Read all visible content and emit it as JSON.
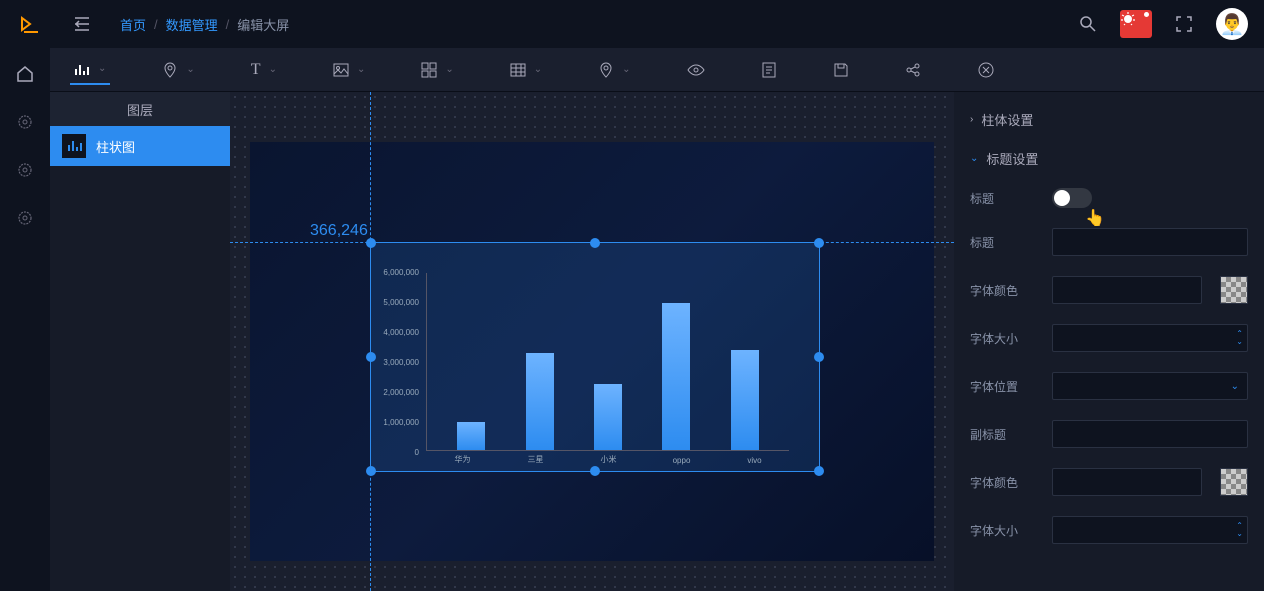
{
  "breadcrumb": {
    "home": "首页",
    "data": "数据管理",
    "edit": "编辑大屏"
  },
  "layers": {
    "title": "图层",
    "item": "柱状图"
  },
  "canvas": {
    "coord": "366,246"
  },
  "chart": {
    "type": "bar",
    "yticks": [
      "6,000,000",
      "5,000,000",
      "4,000,000",
      "3,000,000",
      "2,000,000",
      "1,000,000",
      "0"
    ],
    "categories": [
      "华为",
      "三星",
      "小米",
      "oppo",
      "vivo"
    ],
    "values": [
      950000,
      3300000,
      2250000,
      5000000,
      3400000
    ],
    "ymax": 6000000,
    "bar_gradient_top": "#6db3ff",
    "bar_gradient_bottom": "#2d8cf0",
    "axis_color": "#556677",
    "tick_color": "#99aabb"
  },
  "props": {
    "section_column": "柱体设置",
    "section_title": "标题设置",
    "title_toggle": "标题",
    "title_text": "标题",
    "font_color": "字体颜色",
    "font_size": "字体大小",
    "font_pos": "字体位置",
    "subtitle": "副标题",
    "font_color2": "字体颜色",
    "font_size2": "字体大小"
  },
  "colors": {
    "accent": "#2d8cf0",
    "bug": "#e53935",
    "bg_dark": "#0e131f",
    "bg_panel": "#161b28"
  }
}
